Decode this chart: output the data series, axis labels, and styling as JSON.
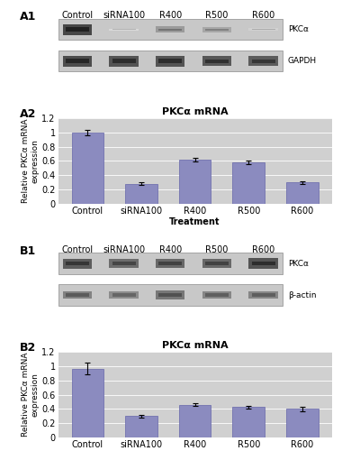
{
  "categories": [
    "Control",
    "siRNA100",
    "R400",
    "R500",
    "R600"
  ],
  "A2_values": [
    1.0,
    0.28,
    0.62,
    0.58,
    0.3
  ],
  "A2_errors": [
    0.04,
    0.02,
    0.03,
    0.03,
    0.02
  ],
  "B2_values": [
    0.97,
    0.3,
    0.46,
    0.43,
    0.4
  ],
  "B2_errors": [
    0.08,
    0.02,
    0.02,
    0.02,
    0.03
  ],
  "bar_color": "#8b8bbf",
  "bar_edge_color": "#6666aa",
  "plot_bg_color": "#d0d0d0",
  "grid_color": "#ffffff",
  "blot_bg_color": "#c8c8c8",
  "blot_border_color": "#999999",
  "title": "PKCα mRNA",
  "ylabel": "Relative PKCα mRNA\nexpression",
  "xlabel": "Treatment",
  "ylim": [
    0,
    1.2
  ],
  "yticks": [
    0,
    0.2,
    0.4,
    0.6,
    0.8,
    1.0,
    1.2
  ],
  "col_labels": [
    "Control",
    "siRNA100",
    "R400",
    "R500",
    "R600"
  ],
  "A1_band1_label": "PKCα",
  "A1_band2_label": "GAPDH",
  "B1_band1_label": "PKCα",
  "B1_band2_label": "β-actin",
  "A1_pkcalpha": [
    0.88,
    0.18,
    0.48,
    0.42,
    0.22
  ],
  "A1_gapdh": [
    0.85,
    0.82,
    0.82,
    0.8,
    0.78
  ],
  "B1_pkcalpha": [
    0.78,
    0.7,
    0.72,
    0.72,
    0.82
  ],
  "B1_bactin": [
    0.6,
    0.55,
    0.65,
    0.58,
    0.58
  ],
  "panel_label_fs": 9,
  "col_label_fs": 7,
  "band_label_fs": 6.5,
  "title_fs": 8,
  "tick_fs": 7,
  "ylabel_fs": 6.5,
  "xlabel_fs": 7
}
